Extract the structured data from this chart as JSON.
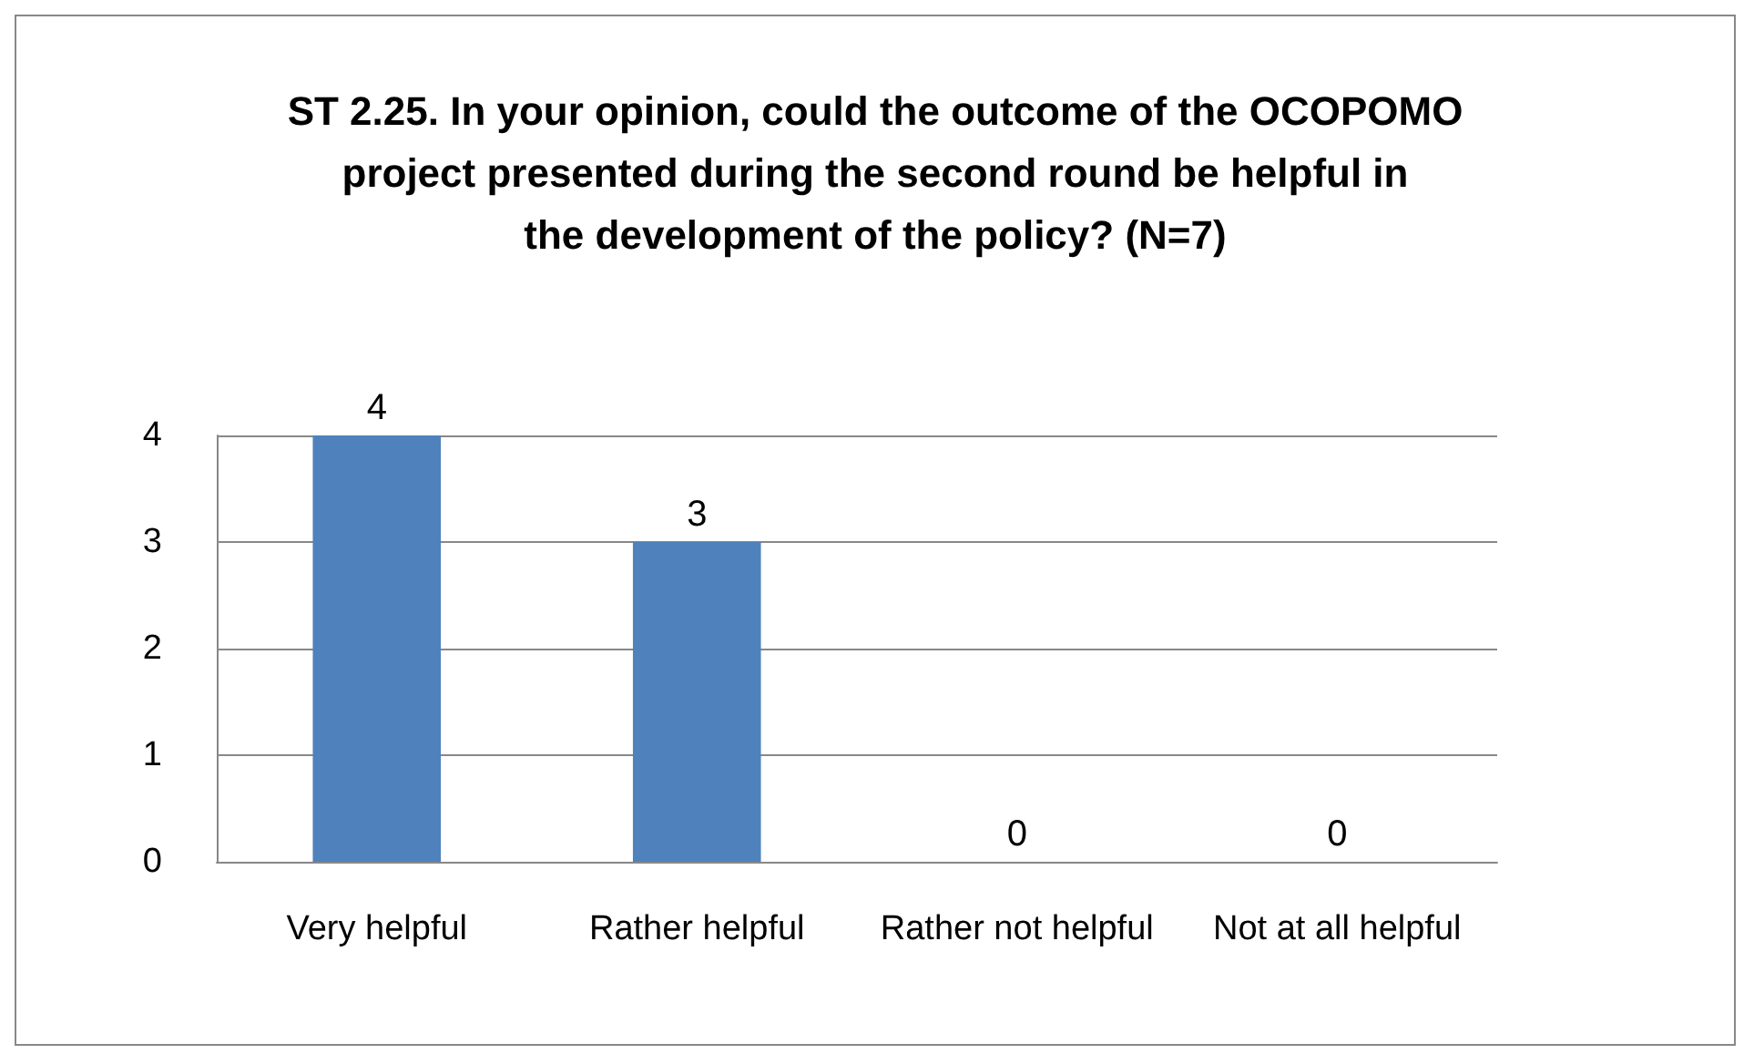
{
  "chart_data": {
    "type": "bar",
    "title": "ST 2.25. In your opinion, could the outcome of the OCOPOMO project presented during the second round be helpful in the development of the policy? (N=7)",
    "categories": [
      "Very helpful",
      "Rather helpful",
      "Rather not helpful",
      "Not at all helpful"
    ],
    "values": [
      4,
      3,
      0,
      0
    ],
    "color": "#4f81bd",
    "ylim": [
      0,
      4
    ],
    "yticks": [
      0,
      1,
      2,
      3,
      4
    ],
    "grid": "y",
    "data_labels": true
  }
}
